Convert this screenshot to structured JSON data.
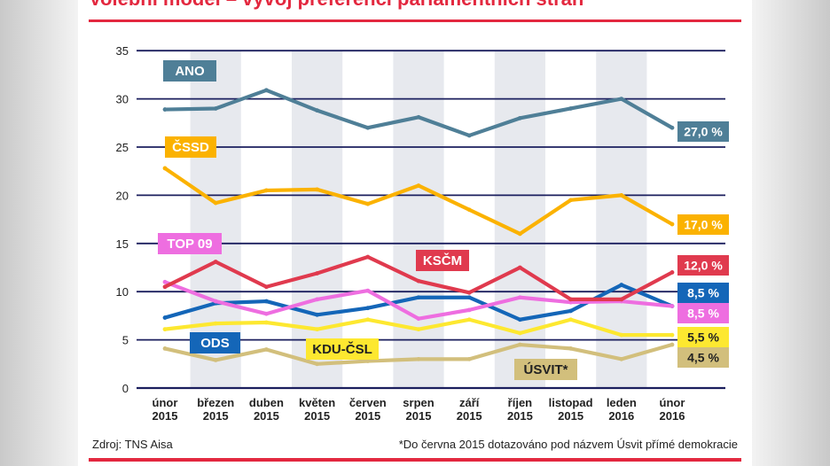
{
  "header": {
    "title": "Volební model – vývoj preferencí parlamentních stran"
  },
  "footer": {
    "source": "Zdroj: TNS Aisa",
    "note": "*Do června 2015 dotazováno pod názvem Úsvit přímé demokracie"
  },
  "chart_data": {
    "type": "line",
    "title": "Volební model – vývoj preferencí parlamentních stran",
    "xlabel": "",
    "ylabel": "",
    "ylim": [
      0,
      35
    ],
    "yticks": [
      0,
      5,
      10,
      15,
      20,
      25,
      30,
      35
    ],
    "grid": true,
    "categories": [
      [
        "únor",
        "2015"
      ],
      [
        "březen",
        "2015"
      ],
      [
        "duben",
        "2015"
      ],
      [
        "květen",
        "2015"
      ],
      [
        "červen",
        "2015"
      ],
      [
        "srpen",
        "2015"
      ],
      [
        "září",
        "2015"
      ],
      [
        "říjen",
        "2015"
      ],
      [
        "listopad",
        "2015"
      ],
      [
        "leden",
        "2016"
      ],
      [
        "únor",
        "2016"
      ]
    ],
    "series": [
      {
        "name": "ANO",
        "color": "#4f7f97",
        "final_label": "27,0 %",
        "label_text_color": "#ffffff",
        "values": [
          28.9,
          29.0,
          30.9,
          28.8,
          27.0,
          28.1,
          26.2,
          28.0,
          29.0,
          30.0,
          27.0
        ]
      },
      {
        "name": "ČSSD",
        "color": "#fbb200",
        "final_label": "17,0 %",
        "label_text_color": "#ffffff",
        "values": [
          22.8,
          19.2,
          20.5,
          20.6,
          19.1,
          21.0,
          18.5,
          16.0,
          19.5,
          20.0,
          17.0
        ]
      },
      {
        "name": "KSČM",
        "color": "#e03a4e",
        "final_label": "12,0 %",
        "label_text_color": "#ffffff",
        "values": [
          10.5,
          13.1,
          10.5,
          11.9,
          13.6,
          11.1,
          9.9,
          12.5,
          9.2,
          9.2,
          12.0
        ]
      },
      {
        "name": "TOP 09",
        "color": "#ee6ee0",
        "final_label": "8,5 %",
        "label_text_color": "#ffffff",
        "values": [
          11.0,
          9.0,
          7.7,
          9.2,
          10.1,
          7.2,
          8.1,
          9.4,
          8.9,
          9.0,
          8.5
        ]
      },
      {
        "name": "ODS",
        "color": "#1466b8",
        "final_label": "8,5 %",
        "label_text_color": "#ffffff",
        "values": [
          7.3,
          8.8,
          9.0,
          7.6,
          8.3,
          9.4,
          9.4,
          7.1,
          8.0,
          10.7,
          8.5
        ]
      },
      {
        "name": "KDU-ČSL",
        "color": "#fde830",
        "final_label": "5,5 %",
        "label_text_color": "#222222",
        "values": [
          6.1,
          6.7,
          6.8,
          6.1,
          7.1,
          6.1,
          7.1,
          5.7,
          7.1,
          5.5,
          5.5
        ]
      },
      {
        "name": "ÚSVIT*",
        "color": "#d2bf7c",
        "final_label": "4,5 %",
        "label_text_color": "#222222",
        "values": [
          4.1,
          2.9,
          4.0,
          2.5,
          2.8,
          3.0,
          3.0,
          4.5,
          4.1,
          3.0,
          4.5
        ]
      }
    ]
  }
}
